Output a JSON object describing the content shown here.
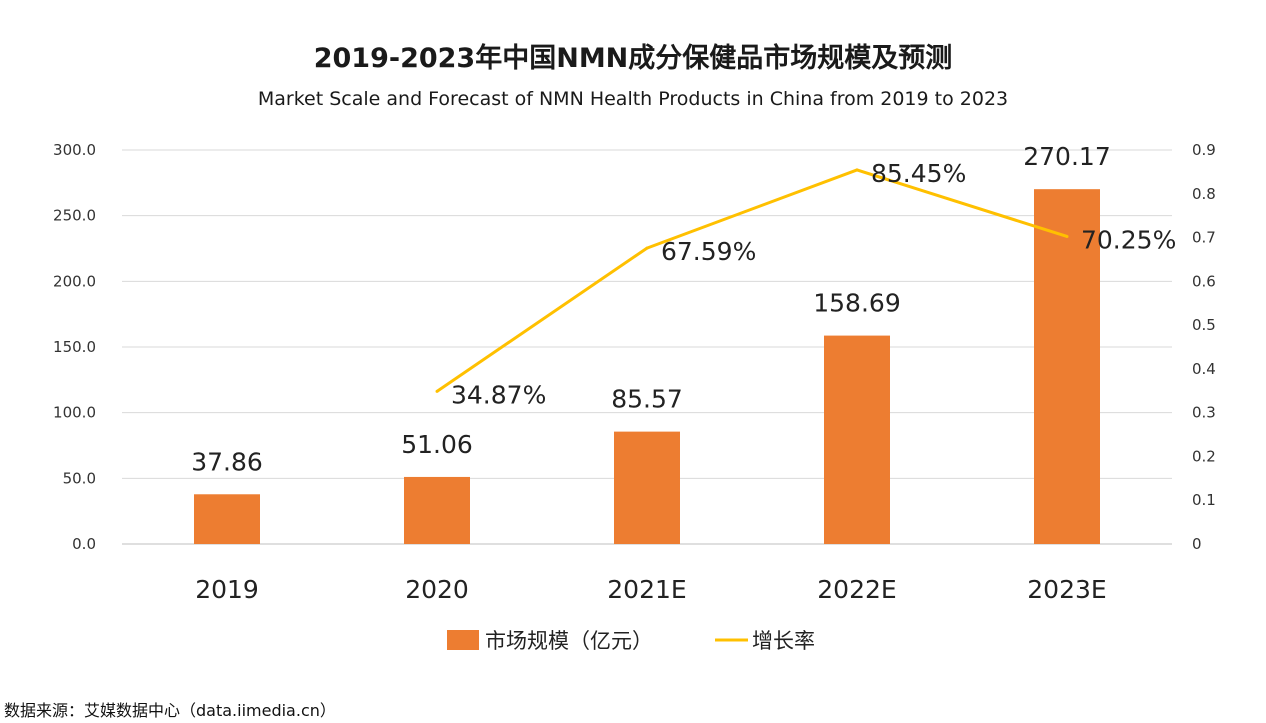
{
  "chart_data": {
    "type": "bar",
    "title": "2019-2023年中国NMN成分保健品市场规模及预测",
    "subtitle": "Market Scale and Forecast of NMN Health Products in China from 2019 to 2023",
    "categories": [
      "2019",
      "2020",
      "2021E",
      "2022E",
      "2023E"
    ],
    "series": [
      {
        "name": "市场规模（亿元）",
        "type": "bar",
        "axis": "left",
        "color": "#ED7D31",
        "values": [
          37.86,
          51.06,
          85.57,
          158.69,
          270.17
        ],
        "labels": [
          "37.86",
          "51.06",
          "85.57",
          "158.69",
          "270.17"
        ]
      },
      {
        "name": "增长率",
        "type": "line",
        "axis": "right",
        "color": "#FFC000",
        "values": [
          null,
          0.3487,
          0.6759,
          0.8545,
          0.7025
        ],
        "labels": [
          "",
          "34.87%",
          "67.59%",
          "85.45%",
          "70.25%"
        ]
      }
    ],
    "y_left": {
      "ylim": [
        0,
        300
      ],
      "ticks": [
        0,
        50,
        100,
        150,
        200,
        250,
        300
      ],
      "tick_labels": [
        "0.0",
        "50.0",
        "100.0",
        "150.0",
        "200.0",
        "250.0",
        "300.0"
      ]
    },
    "y_right": {
      "ylim": [
        0,
        0.9
      ],
      "ticks": [
        0,
        0.1,
        0.2,
        0.3,
        0.4,
        0.5,
        0.6,
        0.7,
        0.8,
        0.9
      ],
      "tick_labels": [
        "0",
        "0.1",
        "0.2",
        "0.3",
        "0.4",
        "0.5",
        "0.6",
        "0.7",
        "0.8",
        "0.9"
      ]
    },
    "grid": true,
    "legend_position": "bottom",
    "source": "数据来源：艾媒数据中心（data.iimedia.cn）"
  }
}
